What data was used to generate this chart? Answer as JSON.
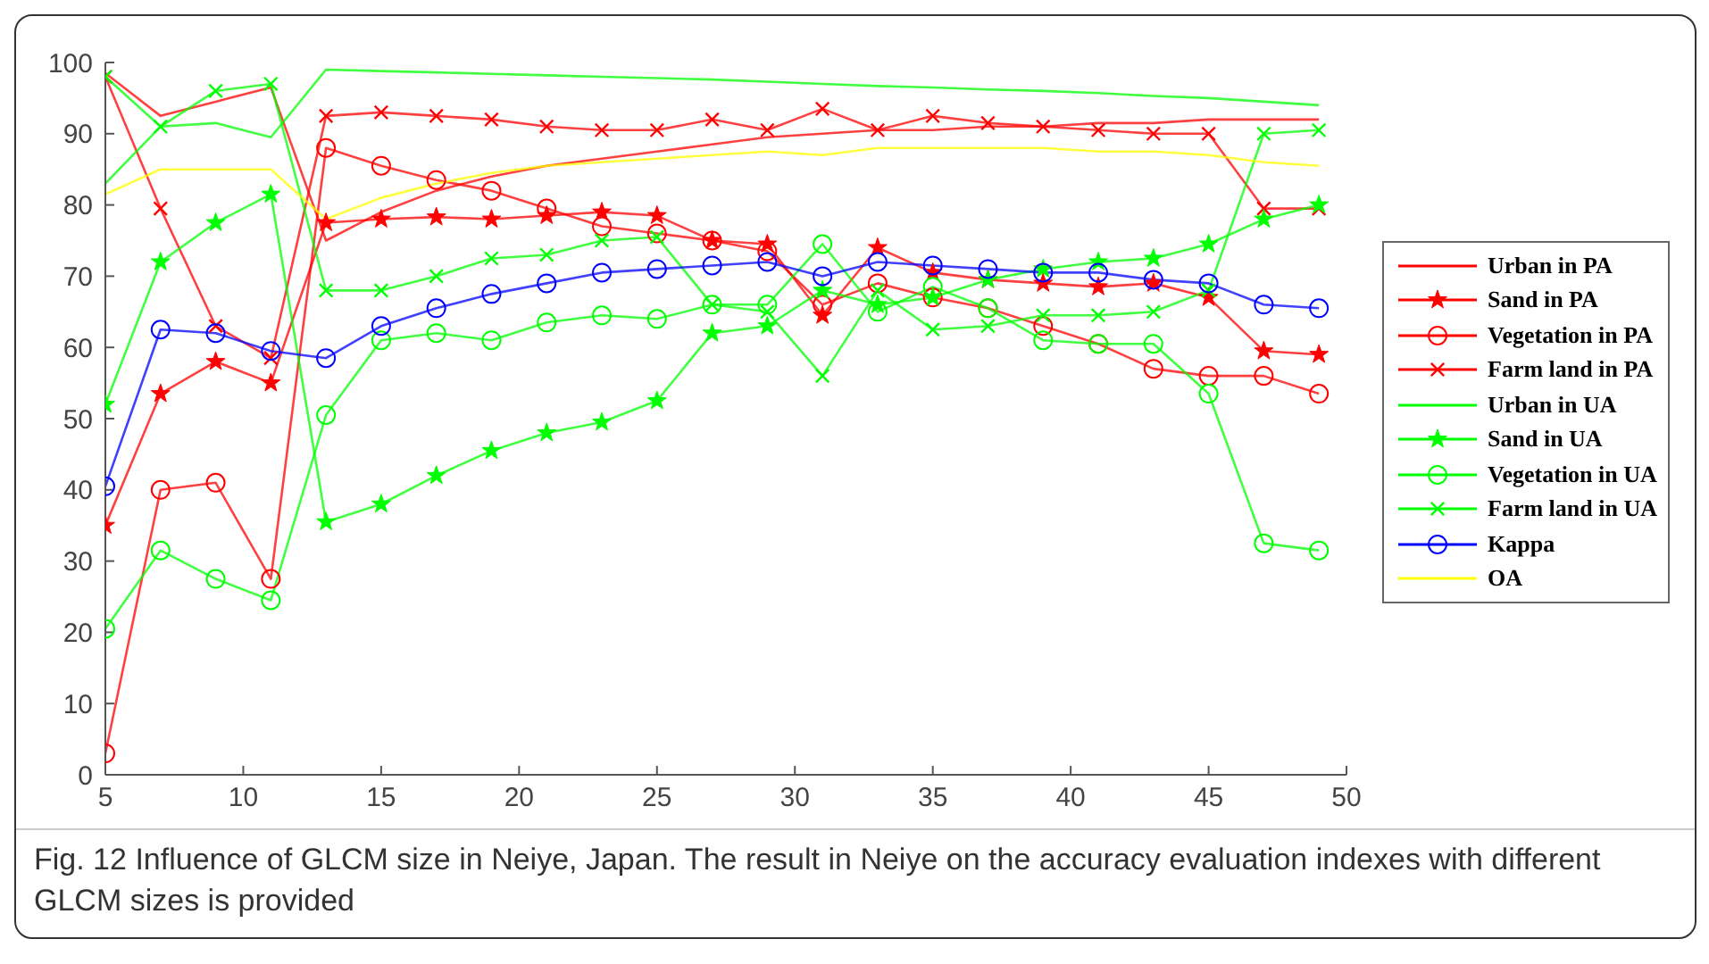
{
  "chart_data": {
    "type": "line",
    "annotations": [
      "Fig. 12 Influence of GLCM size in Neiye, Japan. The result in Neiye on the accuracy evaluation indexes with different GLCM sizes is provided"
    ],
    "x": [
      5,
      7,
      9,
      11,
      13,
      15,
      17,
      19,
      21,
      23,
      25,
      27,
      29,
      31,
      33,
      35,
      37,
      39,
      41,
      43,
      45,
      47,
      49
    ],
    "xlim": [
      5,
      50
    ],
    "xticks": [
      5,
      10,
      15,
      20,
      25,
      30,
      35,
      40,
      45,
      50
    ],
    "ylim": [
      0,
      100
    ],
    "yticks": [
      0,
      10,
      20,
      30,
      40,
      50,
      60,
      70,
      80,
      90,
      100
    ],
    "grid": false,
    "legend": "right",
    "line_style": "solid",
    "series": [
      {
        "name": "Urban in PA",
        "color": "#ff0000",
        "marker": "none",
        "values": [
          98.5,
          92.5,
          94.5,
          96.5,
          75,
          79,
          82,
          84,
          85.5,
          86.5,
          87.5,
          88.5,
          89.5,
          90,
          90.5,
          90.5,
          91,
          91,
          91.5,
          91.5,
          92,
          92,
          92
        ]
      },
      {
        "name": "Sand in PA",
        "color": "#ff0000",
        "marker": "star",
        "values": [
          35,
          53.5,
          58,
          55,
          77.5,
          78,
          78.3,
          78,
          78.5,
          79,
          78.5,
          75,
          74.5,
          64.5,
          74,
          70.5,
          69.5,
          69,
          68.5,
          69,
          67,
          59.5,
          59
        ]
      },
      {
        "name": "Vegetation in PA",
        "color": "#ff0000",
        "marker": "circle",
        "values": [
          3,
          40,
          41,
          27.5,
          88,
          85.5,
          83.5,
          82,
          79.5,
          77,
          76,
          75,
          73.5,
          66,
          69,
          67,
          65.5,
          63,
          60.5,
          57,
          56,
          56,
          53.5
        ]
      },
      {
        "name": "Farm land in PA",
        "color": "#ff0000",
        "marker": "cross",
        "values": [
          98,
          79.5,
          63,
          58.5,
          92.5,
          93,
          92.5,
          92,
          91,
          90.5,
          90.5,
          92,
          90.5,
          93.5,
          90.5,
          92.5,
          91.5,
          91,
          90.5,
          90,
          90,
          79.5,
          79.5
        ]
      },
      {
        "name": "Urban in UA",
        "color": "#00ff00",
        "marker": "none",
        "values": [
          83,
          91,
          91.5,
          89.5,
          99,
          98.8,
          98.6,
          98.4,
          98.2,
          98,
          97.8,
          97.6,
          97.3,
          97,
          96.7,
          96.5,
          96.2,
          96,
          95.7,
          95.3,
          95,
          94.5,
          94
        ]
      },
      {
        "name": "Sand in UA",
        "color": "#00ff00",
        "marker": "star",
        "values": [
          52,
          72,
          77.5,
          81.5,
          35.5,
          38,
          42,
          45.5,
          48,
          49.5,
          52.5,
          62,
          63,
          68,
          66,
          67,
          69.5,
          71,
          72,
          72.5,
          74.5,
          78,
          80
        ]
      },
      {
        "name": "Vegetation in UA",
        "color": "#00ff00",
        "marker": "circle",
        "values": [
          20.5,
          31.5,
          27.5,
          24.5,
          50.5,
          61,
          62,
          61,
          63.5,
          64.5,
          64,
          66,
          66,
          74.5,
          65,
          68.5,
          65.5,
          61,
          60.5,
          60.5,
          53.5,
          32.5,
          31.5
        ]
      },
      {
        "name": "Farm land in UA",
        "color": "#00ff00",
        "marker": "cross",
        "values": [
          98,
          91,
          96,
          97,
          68,
          68,
          70,
          72.5,
          73,
          75,
          75.5,
          66,
          65,
          56,
          68,
          62.5,
          63,
          64.5,
          64.5,
          65,
          68,
          90,
          90.5
        ]
      },
      {
        "name": "Kappa",
        "color": "#0000ff",
        "marker": "circle",
        "values": [
          40.5,
          62.5,
          62,
          59.5,
          58.5,
          63,
          65.5,
          67.5,
          69,
          70.5,
          71,
          71.5,
          72,
          70,
          72,
          71.5,
          71,
          70.5,
          70.5,
          69.5,
          69,
          66,
          65.5
        ]
      },
      {
        "name": "OA",
        "color": "#ffff00",
        "marker": "none",
        "values": [
          81.5,
          85,
          85,
          85,
          78,
          81,
          83,
          84.5,
          85.5,
          86,
          86.5,
          87,
          87.5,
          87,
          88,
          88,
          88,
          88,
          87.5,
          87.5,
          87,
          86,
          85.5
        ]
      }
    ]
  }
}
